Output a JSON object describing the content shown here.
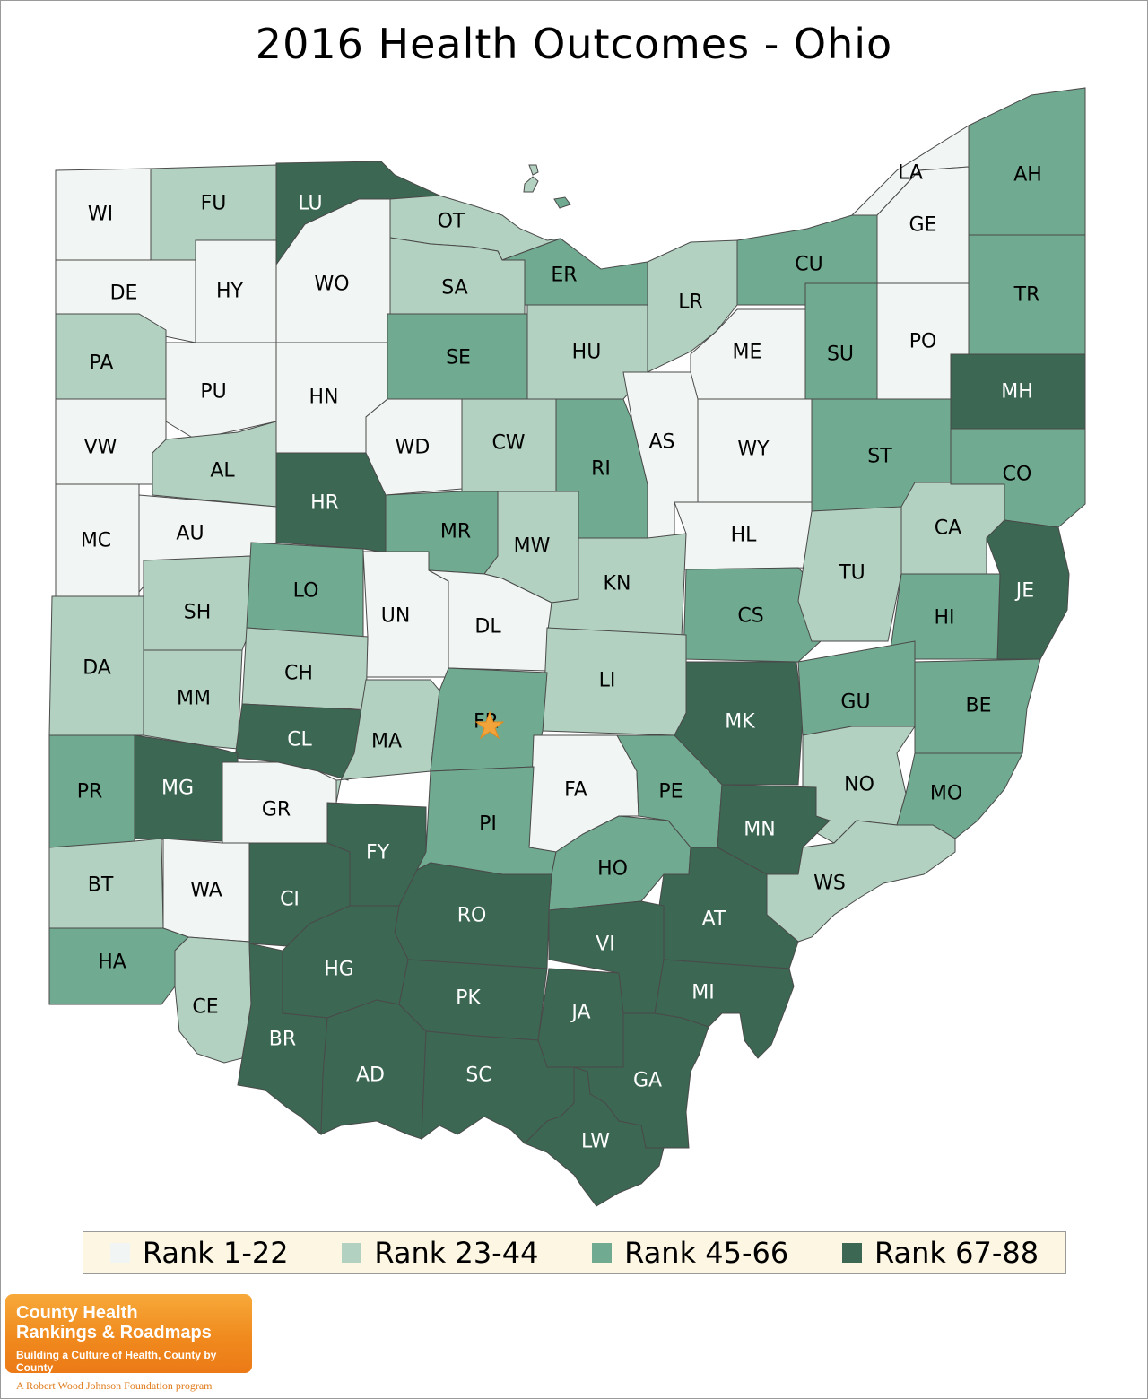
{
  "title": "2016 Health Outcomes - Ohio",
  "colors": {
    "rank_1_22": "#f1f5f3",
    "rank_23_44": "#b2d1c1",
    "rank_45_66": "#70aa90",
    "rank_67_88": "#3b6753",
    "label_dark": "#000000",
    "label_light": "#ffffff",
    "star": "#f2a33a"
  },
  "legend": [
    {
      "label": "Rank 1-22",
      "tier": 1
    },
    {
      "label": "Rank 23-44",
      "tier": 2
    },
    {
      "label": "Rank 45-66",
      "tier": 3
    },
    {
      "label": "Rank 67-88",
      "tier": 4
    }
  ],
  "counties": [
    {
      "code": "WI",
      "tier": 1
    },
    {
      "code": "FU",
      "tier": 2
    },
    {
      "code": "LU",
      "tier": 4
    },
    {
      "code": "OT",
      "tier": 2
    },
    {
      "code": "LA",
      "tier": 1
    },
    {
      "code": "AH",
      "tier": 3
    },
    {
      "code": "GE",
      "tier": 1
    },
    {
      "code": "DE",
      "tier": 1
    },
    {
      "code": "HY",
      "tier": 1
    },
    {
      "code": "WO",
      "tier": 1
    },
    {
      "code": "SA",
      "tier": 2
    },
    {
      "code": "ER",
      "tier": 3
    },
    {
      "code": "CU",
      "tier": 3
    },
    {
      "code": "LR",
      "tier": 2
    },
    {
      "code": "TR",
      "tier": 3
    },
    {
      "code": "PA",
      "tier": 2
    },
    {
      "code": "PU",
      "tier": 1
    },
    {
      "code": "HN",
      "tier": 1
    },
    {
      "code": "SE",
      "tier": 3
    },
    {
      "code": "HU",
      "tier": 2
    },
    {
      "code": "ME",
      "tier": 1
    },
    {
      "code": "SU",
      "tier": 3
    },
    {
      "code": "PO",
      "tier": 1
    },
    {
      "code": "MH",
      "tier": 4
    },
    {
      "code": "VW",
      "tier": 1
    },
    {
      "code": "AL",
      "tier": 2
    },
    {
      "code": "WD",
      "tier": 1
    },
    {
      "code": "CW",
      "tier": 2
    },
    {
      "code": "RI",
      "tier": 3
    },
    {
      "code": "AS",
      "tier": 1
    },
    {
      "code": "WY",
      "tier": 1
    },
    {
      "code": "ST",
      "tier": 3
    },
    {
      "code": "CO",
      "tier": 3
    },
    {
      "code": "MC",
      "tier": 1
    },
    {
      "code": "AU",
      "tier": 1
    },
    {
      "code": "HR",
      "tier": 4
    },
    {
      "code": "MR",
      "tier": 3
    },
    {
      "code": "MW",
      "tier": 2
    },
    {
      "code": "HL",
      "tier": 1
    },
    {
      "code": "CA",
      "tier": 2
    },
    {
      "code": "JE",
      "tier": 4
    },
    {
      "code": "SH",
      "tier": 2
    },
    {
      "code": "LO",
      "tier": 3
    },
    {
      "code": "UN",
      "tier": 1
    },
    {
      "code": "DL",
      "tier": 1
    },
    {
      "code": "KN",
      "tier": 2
    },
    {
      "code": "CS",
      "tier": 3
    },
    {
      "code": "TU",
      "tier": 2
    },
    {
      "code": "HI",
      "tier": 3
    },
    {
      "code": "DA",
      "tier": 2
    },
    {
      "code": "MM",
      "tier": 2
    },
    {
      "code": "CH",
      "tier": 2
    },
    {
      "code": "LI",
      "tier": 2
    },
    {
      "code": "MK",
      "tier": 4
    },
    {
      "code": "GU",
      "tier": 3
    },
    {
      "code": "BE",
      "tier": 3
    },
    {
      "code": "CL",
      "tier": 4
    },
    {
      "code": "MA",
      "tier": 2
    },
    {
      "code": "FR",
      "tier": 3
    },
    {
      "code": "PR",
      "tier": 3
    },
    {
      "code": "MG",
      "tier": 4
    },
    {
      "code": "GR",
      "tier": 1
    },
    {
      "code": "FA",
      "tier": 1
    },
    {
      "code": "PE",
      "tier": 3
    },
    {
      "code": "NO",
      "tier": 2
    },
    {
      "code": "MO",
      "tier": 3
    },
    {
      "code": "FY",
      "tier": 4
    },
    {
      "code": "PI",
      "tier": 3
    },
    {
      "code": "MN",
      "tier": 4
    },
    {
      "code": "BT",
      "tier": 2
    },
    {
      "code": "WA",
      "tier": 1
    },
    {
      "code": "CI",
      "tier": 4
    },
    {
      "code": "HO",
      "tier": 3
    },
    {
      "code": "WS",
      "tier": 2
    },
    {
      "code": "RO",
      "tier": 4
    },
    {
      "code": "AT",
      "tier": 4
    },
    {
      "code": "VI",
      "tier": 4
    },
    {
      "code": "HA",
      "tier": 3
    },
    {
      "code": "HG",
      "tier": 4
    },
    {
      "code": "CE",
      "tier": 2
    },
    {
      "code": "PK",
      "tier": 4
    },
    {
      "code": "MI",
      "tier": 4
    },
    {
      "code": "JA",
      "tier": 4
    },
    {
      "code": "BR",
      "tier": 4
    },
    {
      "code": "AD",
      "tier": 4
    },
    {
      "code": "SC",
      "tier": 4
    },
    {
      "code": "GA",
      "tier": 4
    },
    {
      "code": "LW",
      "tier": 4
    }
  ],
  "capital_marker": "star-marker",
  "logo": {
    "line1": "County Health",
    "line2": "Rankings & Roadmaps",
    "line3": "Building a Culture of Health, County by County",
    "sub": "A Robert Wood Johnson Foundation program"
  }
}
